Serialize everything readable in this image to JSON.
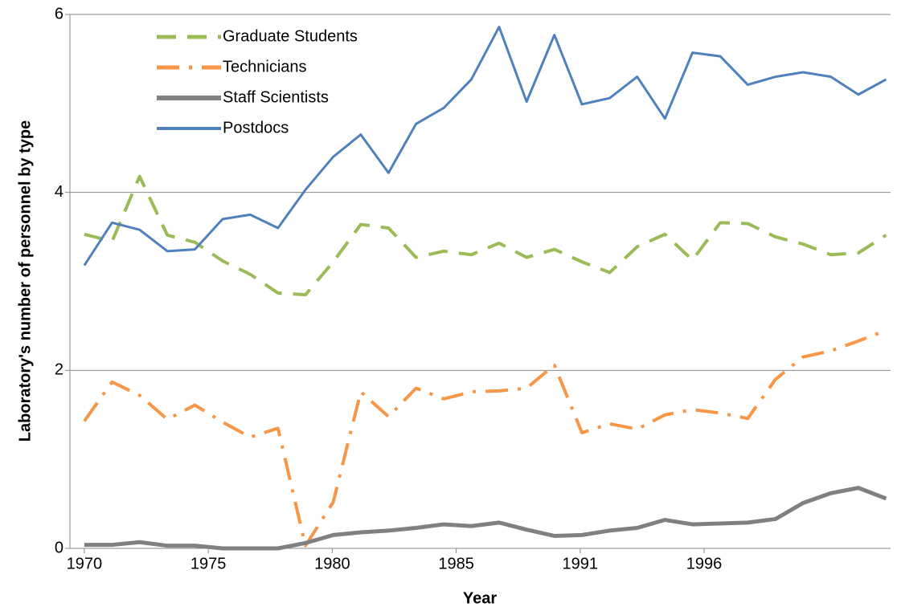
{
  "chart_data": {
    "type": "line",
    "x_label": "Year",
    "y_label": "Laboratory's number of personnel by type",
    "x": [
      0,
      1.12,
      2.23,
      3.35,
      4.46,
      5.58,
      6.69,
      7.81,
      8.92,
      10.04,
      11.15,
      12.27,
      13.38,
      14.5,
      15.61,
      16.73,
      17.84,
      18.96,
      20.07,
      21.19,
      22.3,
      23.42,
      24.53,
      25.65,
      26.76,
      27.88,
      28.99,
      30.11,
      31.22,
      32.34
    ],
    "xlim": [
      -0.58,
      32.52
    ],
    "xticks": [
      {
        "value": 0,
        "label": "1970"
      },
      {
        "value": 5,
        "label": "1975"
      },
      {
        "value": 10,
        "label": "1980"
      },
      {
        "value": 15,
        "label": "1985"
      },
      {
        "value": 20,
        "label": "1991"
      },
      {
        "value": 25,
        "label": "1996"
      }
    ],
    "ylim": [
      0,
      6
    ],
    "yticks": [
      0,
      2,
      4,
      6
    ],
    "grid": true,
    "legend": "top-left",
    "series": [
      {
        "name": "Graduate Students",
        "color": "#9bbb59",
        "dash": "dash",
        "values": [
          3.53,
          3.45,
          4.18,
          3.52,
          3.44,
          3.23,
          3.08,
          2.87,
          2.85,
          3.22,
          3.64,
          3.6,
          3.27,
          3.34,
          3.3,
          3.43,
          3.27,
          3.36,
          3.22,
          3.1,
          3.39,
          3.53,
          3.24,
          3.66,
          3.65,
          3.5,
          3.42,
          3.3,
          3.32,
          3.52
        ]
      },
      {
        "name": "Technicians",
        "color": "#f79646",
        "dash": "dash-dot",
        "values": [
          1.43,
          1.87,
          1.72,
          1.45,
          1.61,
          1.42,
          1.25,
          1.35,
          0.03,
          0.52,
          1.76,
          1.48,
          1.8,
          1.68,
          1.76,
          1.77,
          1.8,
          2.06,
          1.3,
          1.4,
          1.34,
          1.5,
          1.56,
          1.52,
          1.46,
          1.9,
          2.15,
          2.22,
          2.33,
          2.45
        ]
      },
      {
        "name": "Staff Scientists",
        "color": "#808080",
        "dash": "solid-thick",
        "values": [
          0.04,
          0.04,
          0.07,
          0.03,
          0.03,
          0,
          0,
          0,
          0.06,
          0.15,
          0.18,
          0.2,
          0.23,
          0.27,
          0.25,
          0.29,
          0.21,
          0.14,
          0.15,
          0.2,
          0.23,
          0.32,
          0.27,
          0.28,
          0.29,
          0.33,
          0.51,
          0.62,
          0.68,
          0.56
        ]
      },
      {
        "name": "Postdocs",
        "color": "#4f81bd",
        "dash": "solid",
        "values": [
          3.18,
          3.66,
          3.58,
          3.34,
          3.36,
          3.7,
          3.75,
          3.6,
          4.03,
          4.4,
          4.65,
          4.22,
          4.77,
          4.95,
          5.27,
          5.86,
          5.02,
          5.77,
          4.99,
          5.06,
          5.3,
          4.83,
          5.57,
          5.53,
          5.21,
          5.3,
          5.35,
          5.3,
          5.1,
          5.27
        ]
      }
    ]
  }
}
